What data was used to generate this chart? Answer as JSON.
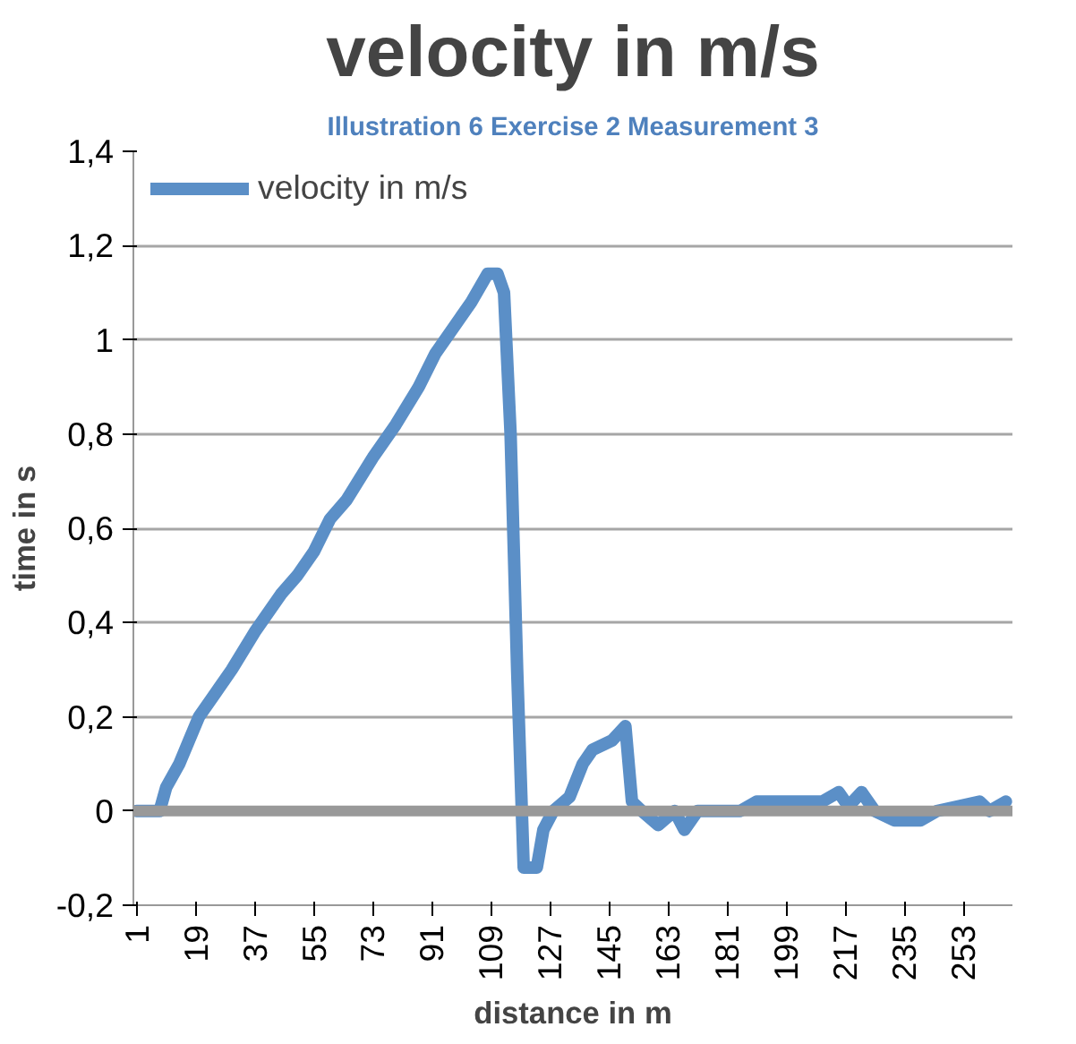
{
  "chart_data": {
    "type": "line",
    "title": "velocity in m/s",
    "xlabel": "distance in m",
    "ylabel": "time in s",
    "annotations": [
      "Illustration 6 Exercise 2 Measurement 3"
    ],
    "xlim": [
      0,
      268
    ],
    "xticks": [
      1,
      19,
      37,
      55,
      73,
      91,
      109,
      127,
      145,
      163,
      181,
      199,
      217,
      235,
      253
    ],
    "ylim": [
      -0.2,
      1.4
    ],
    "yticks": [
      {
        "value": -0.2,
        "label": "-0,2"
      },
      0,
      {
        "value": 0.2,
        "label": "0,2"
      },
      {
        "value": 0.4,
        "label": "0,4"
      },
      {
        "value": 0.6,
        "label": "0,6"
      },
      {
        "value": 0.8,
        "label": "0,8"
      },
      1,
      {
        "value": 1.2,
        "label": "1,2"
      },
      {
        "value": 1.4,
        "label": "1,4"
      }
    ],
    "grid": "y",
    "legend": "top left",
    "marker": "none",
    "line_style": "solid",
    "series": [
      {
        "name": "velocity in m/s",
        "color": "#5b8fc7",
        "x": [
          1,
          8,
          10,
          14,
          17,
          20,
          25,
          30,
          37,
          45,
          50,
          55,
          60,
          65,
          73,
          80,
          87,
          92,
          97,
          103,
          108,
          111,
          113,
          115,
          117,
          119,
          123,
          125,
          128,
          133,
          137,
          140,
          146,
          150,
          152,
          155,
          160,
          165,
          168,
          172,
          185,
          190,
          210,
          215,
          218,
          222,
          226,
          232,
          240,
          245,
          258,
          261,
          266
        ],
        "values": [
          0,
          0,
          0.05,
          0.1,
          0.15,
          0.2,
          0.25,
          0.3,
          0.38,
          0.46,
          0.5,
          0.55,
          0.62,
          0.66,
          0.75,
          0.82,
          0.9,
          0.97,
          1.02,
          1.08,
          1.14,
          1.14,
          1.1,
          0.8,
          0.3,
          -0.12,
          -0.12,
          -0.04,
          0,
          0.03,
          0.1,
          0.13,
          0.15,
          0.18,
          0.02,
          0,
          -0.03,
          0,
          -0.04,
          0,
          0,
          0.02,
          0.02,
          0.04,
          0.01,
          0.04,
          0,
          -0.02,
          -0.02,
          0,
          0.02,
          0,
          0.02
        ]
      }
    ]
  }
}
